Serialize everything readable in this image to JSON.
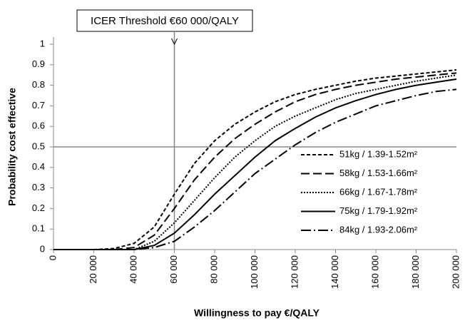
{
  "chart_data": {
    "type": "line",
    "annotation": "ICER Threshold €60 000/QALY",
    "x_label": "Willingness to pay €/QALY",
    "y_label": "Probability cost effective",
    "x": [
      0,
      10000,
      20000,
      30000,
      40000,
      50000,
      60000,
      70000,
      80000,
      90000,
      100000,
      110000,
      120000,
      130000,
      140000,
      150000,
      160000,
      170000,
      180000,
      190000,
      200000
    ],
    "series": [
      {
        "name": "51kg / 1.39-1.52m²",
        "color": "#000000",
        "dash": "5,3",
        "values": [
          0,
          0,
          0,
          0.005,
          0.03,
          0.11,
          0.27,
          0.42,
          0.53,
          0.61,
          0.67,
          0.72,
          0.755,
          0.78,
          0.8,
          0.82,
          0.835,
          0.845,
          0.855,
          0.865,
          0.875
        ]
      },
      {
        "name": "58kg / 1.53-1.66m²",
        "color": "#000000",
        "dash": "12,5",
        "values": [
          0,
          0,
          0,
          0,
          0.01,
          0.07,
          0.2,
          0.34,
          0.45,
          0.54,
          0.61,
          0.67,
          0.72,
          0.755,
          0.78,
          0.8,
          0.815,
          0.83,
          0.84,
          0.85,
          0.86
        ]
      },
      {
        "name": "66kg / 1.67-1.78m²",
        "color": "#000000",
        "dash": "2,2",
        "values": [
          0,
          0,
          0,
          0,
          0,
          0.04,
          0.13,
          0.24,
          0.35,
          0.45,
          0.53,
          0.6,
          0.65,
          0.69,
          0.73,
          0.76,
          0.78,
          0.8,
          0.82,
          0.835,
          0.85
        ]
      },
      {
        "name": "75kg / 1.79-1.92m²",
        "color": "#000000",
        "dash": "none",
        "values": [
          0,
          0,
          0,
          0,
          0,
          0.02,
          0.08,
          0.17,
          0.27,
          0.36,
          0.45,
          0.53,
          0.59,
          0.645,
          0.69,
          0.725,
          0.755,
          0.78,
          0.8,
          0.815,
          0.83
        ]
      },
      {
        "name": "84kg / 1.93-2.06m²",
        "color": "#000000",
        "dash": "14,4,2,4",
        "values": [
          0,
          0,
          0,
          0,
          0,
          0.01,
          0.04,
          0.11,
          0.19,
          0.28,
          0.37,
          0.44,
          0.51,
          0.57,
          0.62,
          0.66,
          0.7,
          0.725,
          0.75,
          0.77,
          0.78
        ]
      }
    ],
    "reference_lines": {
      "x": 60000,
      "y": 0.5
    },
    "xlim": [
      0,
      200000
    ],
    "xticks": [
      0,
      {
        "value": 20000,
        "label": "20 000"
      },
      {
        "value": 40000,
        "label": "40 000"
      },
      {
        "value": 60000,
        "label": "60 000"
      },
      {
        "value": 80000,
        "label": "80 000"
      },
      {
        "value": 100000,
        "label": "100 000"
      },
      {
        "value": 120000,
        "label": "120 000"
      },
      {
        "value": 140000,
        "label": "140 000"
      },
      {
        "value": 160000,
        "label": "160 000"
      },
      {
        "value": 180000,
        "label": "180 000"
      },
      {
        "value": 200000,
        "label": "200 000"
      }
    ],
    "ylim": [
      0,
      1
    ],
    "yticks": [
      0,
      0.1,
      0.2,
      0.3,
      0.4,
      0.5,
      0.6,
      0.7,
      0.8,
      0.9,
      1
    ],
    "grid": false,
    "legend": "lower-right"
  }
}
